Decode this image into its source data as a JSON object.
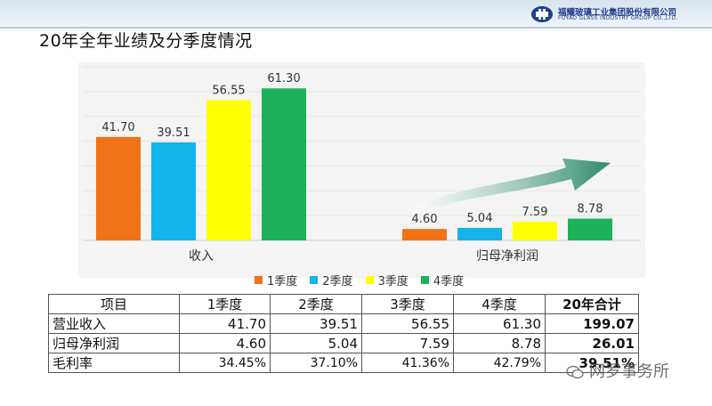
{
  "title": "20年全年业绩及分季度情况",
  "logo": {
    "name": "福耀玻璃工业集团股份有限公司",
    "sub": "FUYAO GLASS INDUSTRY GROUP CO.,LTD."
  },
  "colors": {
    "q1": "#f07217",
    "q2": "#12b4ea",
    "q3": "#ffff00",
    "q4": "#1db159",
    "arrow": "#2d8a6a"
  },
  "chart_data": {
    "type": "bar",
    "categories": [
      "收入",
      "归母净利润"
    ],
    "series": [
      {
        "name": "1季度",
        "values": [
          41.7,
          4.6
        ]
      },
      {
        "name": "2季度",
        "values": [
          39.51,
          5.04
        ]
      },
      {
        "name": "3季度",
        "values": [
          56.55,
          7.59
        ]
      },
      {
        "name": "4季度",
        "values": [
          61.3,
          8.78
        ]
      }
    ],
    "labels": [
      [
        "41.70",
        "4.60"
      ],
      [
        "39.51",
        "5.04"
      ],
      [
        "56.55",
        "7.59"
      ],
      [
        "61.30",
        "8.78"
      ]
    ],
    "ylim": [
      0,
      70
    ],
    "grid": true,
    "legend_position": "bottom"
  },
  "table": {
    "headers": [
      "项目",
      "1季度",
      "2季度",
      "3季度",
      "4季度",
      "20年合计"
    ],
    "rows": [
      [
        "营业收入",
        "41.70",
        "39.51",
        "56.55",
        "61.30",
        "199.07"
      ],
      [
        "归母净利润",
        "4.60",
        "5.04",
        "7.59",
        "8.78",
        "26.01"
      ],
      [
        "毛利率",
        "34.45%",
        "37.10%",
        "41.36%",
        "42.79%",
        "39.51%"
      ]
    ]
  },
  "watermark": "网罗事务所"
}
